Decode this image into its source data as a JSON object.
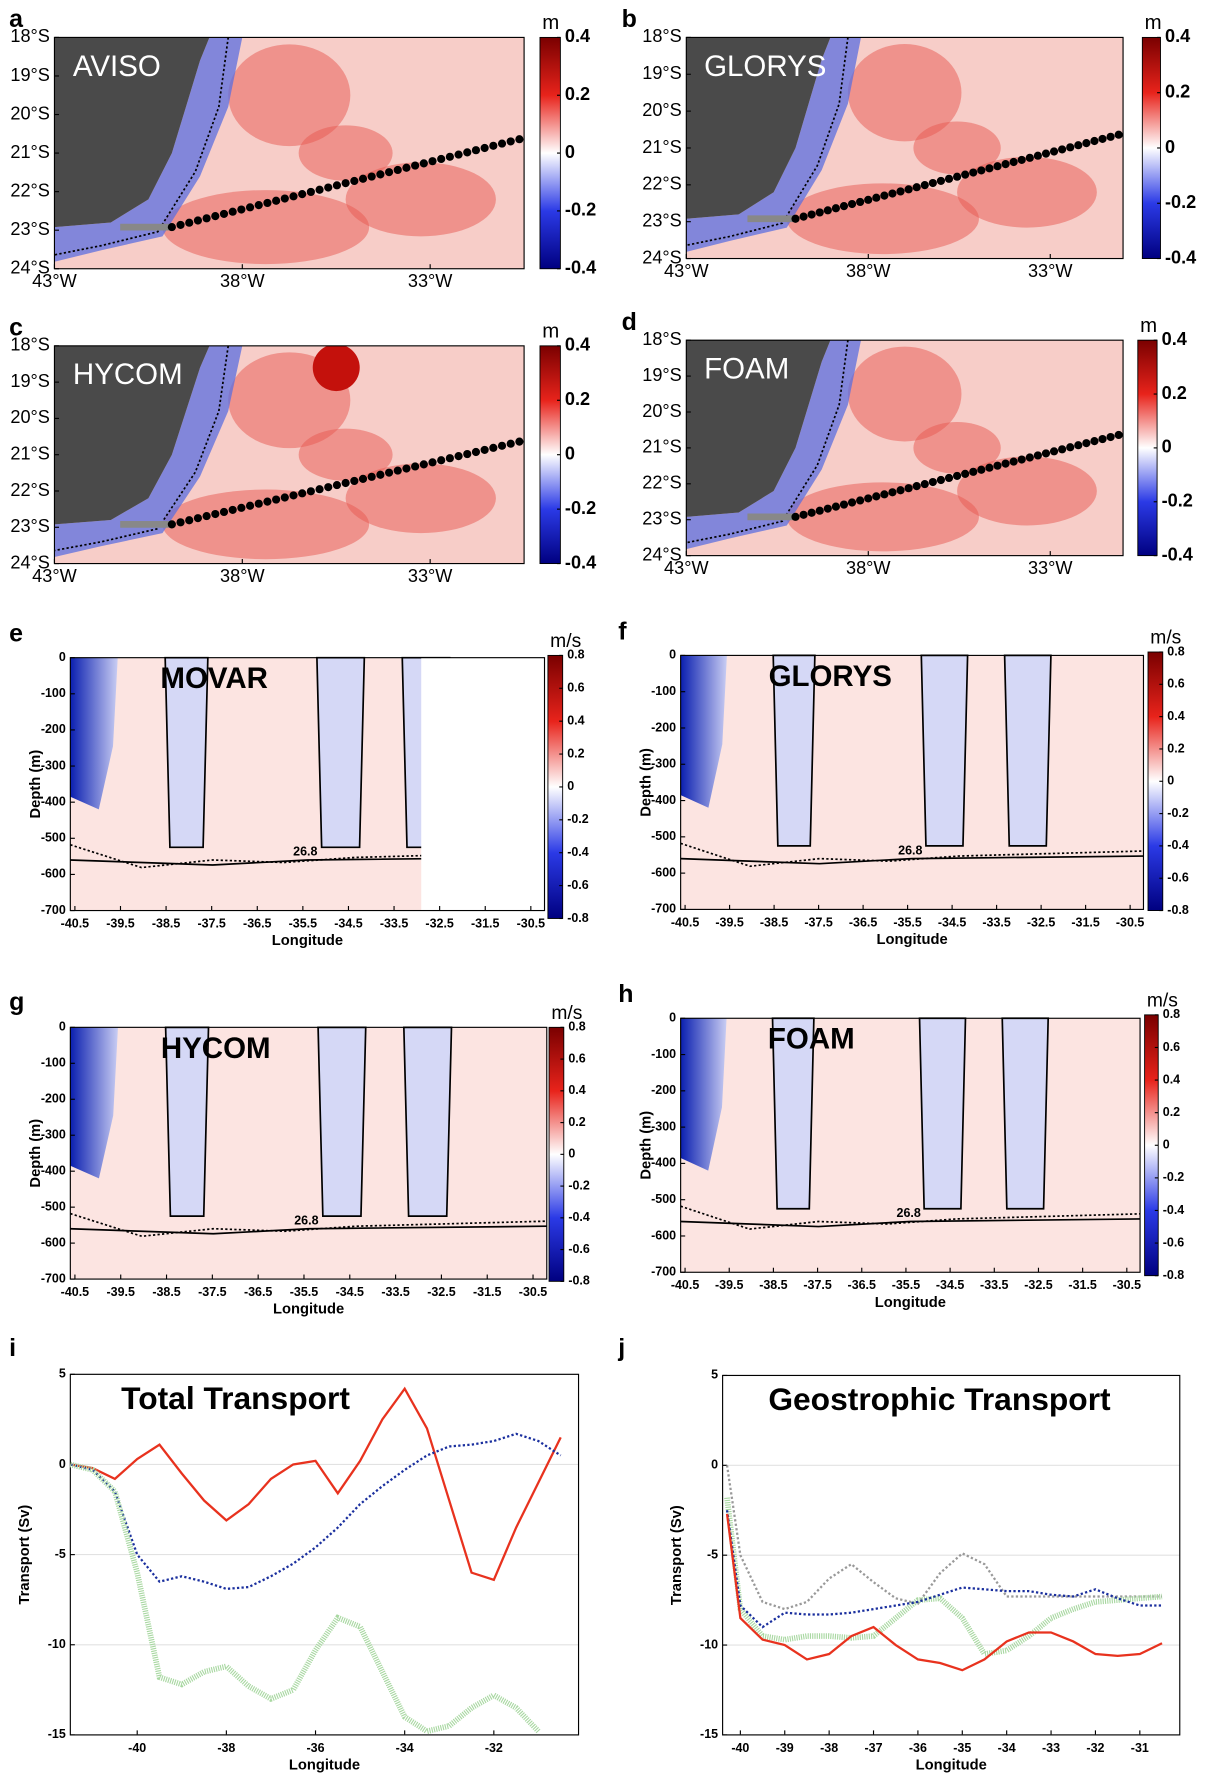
{
  "chart_data": [
    {
      "type": "map",
      "label": "a",
      "title": "AVISO",
      "xlim": [
        -43,
        -30.5
      ],
      "ylim": [
        -24,
        -18
      ],
      "xticks": [
        {
          "value": -43,
          "label": "43°W"
        },
        {
          "value": -38,
          "label": "38°W"
        },
        {
          "value": -33,
          "label": "33°W"
        }
      ],
      "yticks": [
        {
          "value": -18,
          "label": "18°S"
        },
        {
          "value": -19,
          "label": "19°S"
        },
        {
          "value": -20,
          "label": "20°S"
        },
        {
          "value": -21,
          "label": "21°S"
        },
        {
          "value": -22,
          "label": "22°S"
        },
        {
          "value": -23,
          "label": "23°S"
        },
        {
          "value": -24,
          "label": "24°S"
        }
      ],
      "colorbar": {
        "label": "m",
        "lim": [
          -0.4,
          0.4
        ],
        "ticks": [
          0.4,
          0.2,
          0,
          -0.2,
          -0.4
        ]
      }
    },
    {
      "type": "map",
      "label": "b",
      "title": "GLORYS",
      "xlim": [
        -43,
        -31
      ],
      "ylim": [
        -24,
        -18
      ],
      "xticks": [
        {
          "value": -43,
          "label": "43°W"
        },
        {
          "value": -38,
          "label": "38°W"
        },
        {
          "value": -33,
          "label": "33°W"
        }
      ],
      "yticks": [
        {
          "value": -18,
          "label": "18°S"
        },
        {
          "value": -19,
          "label": "19°S"
        },
        {
          "value": -20,
          "label": "20°S"
        },
        {
          "value": -21,
          "label": "21°S"
        },
        {
          "value": -22,
          "label": "22°S"
        },
        {
          "value": -23,
          "label": "23°S"
        },
        {
          "value": -24,
          "label": "24°S"
        }
      ],
      "colorbar": {
        "label": "m",
        "lim": [
          -0.4,
          0.4
        ],
        "ticks": [
          0.4,
          0.2,
          0,
          -0.2,
          -0.4
        ]
      }
    },
    {
      "type": "map",
      "label": "c",
      "title": "HYCOM",
      "xlim": [
        -43,
        -30.5
      ],
      "ylim": [
        -24,
        -18
      ],
      "xticks": [
        {
          "value": -43,
          "label": "43°W"
        },
        {
          "value": -38,
          "label": "38°W"
        },
        {
          "value": -33,
          "label": "33°W"
        }
      ],
      "yticks": [
        {
          "value": -18,
          "label": "18°S"
        },
        {
          "value": -19,
          "label": "19°S"
        },
        {
          "value": -20,
          "label": "20°S"
        },
        {
          "value": -21,
          "label": "21°S"
        },
        {
          "value": -22,
          "label": "22°S"
        },
        {
          "value": -23,
          "label": "23°S"
        },
        {
          "value": -24,
          "label": "24°S"
        }
      ],
      "colorbar": {
        "label": "m",
        "lim": [
          -0.4,
          0.4
        ],
        "ticks": [
          0.4,
          0.2,
          0,
          -0.2,
          -0.4
        ]
      }
    },
    {
      "type": "map",
      "label": "d",
      "title": "FOAM",
      "xlim": [
        -43,
        -31
      ],
      "ylim": [
        -24,
        -18
      ],
      "xticks": [
        {
          "value": -43,
          "label": "43°W"
        },
        {
          "value": -38,
          "label": "38°W"
        },
        {
          "value": -33,
          "label": "33°W"
        }
      ],
      "yticks": [
        {
          "value": -18,
          "label": "18°S"
        },
        {
          "value": -19,
          "label": "19°S"
        },
        {
          "value": -20,
          "label": "20°S"
        },
        {
          "value": -21,
          "label": "21°S"
        },
        {
          "value": -22,
          "label": "22°S"
        },
        {
          "value": -23,
          "label": "23°S"
        },
        {
          "value": -24,
          "label": "24°S"
        }
      ],
      "colorbar": {
        "label": "m",
        "lim": [
          -0.4,
          0.4
        ],
        "ticks": [
          0.4,
          0.2,
          0,
          -0.2,
          -0.4
        ]
      }
    },
    {
      "type": "section",
      "label": "e",
      "title": "MOVAR",
      "xlabel": "Longitude",
      "ylabel": "Depth (m)",
      "annotation": "26.8",
      "xlim": [
        -40.6,
        -30.2
      ],
      "ylim": [
        -700,
        0
      ],
      "xticks": [
        -40.5,
        -39.5,
        -38.5,
        -37.5,
        -36.5,
        -35.5,
        -34.5,
        -33.5,
        -32.5,
        -31.5,
        -30.5
      ],
      "yticks": [
        0,
        -100,
        -200,
        -300,
        -400,
        -500,
        -600,
        -700
      ],
      "colorbar": {
        "label": "m/s",
        "lim": [
          -0.8,
          0.8
        ],
        "ticks": [
          0.8,
          0.6,
          0.4,
          0.2,
          0,
          -0.2,
          -0.4,
          -0.6,
          -0.8
        ]
      }
    },
    {
      "type": "section",
      "label": "f",
      "title": "GLORYS",
      "xlabel": "Longitude",
      "ylabel": "Depth (m)",
      "annotation": "26.8",
      "xlim": [
        -40.6,
        -30.2
      ],
      "ylim": [
        -700,
        0
      ],
      "xticks": [
        -40.5,
        -39.5,
        -38.5,
        -37.5,
        -36.5,
        -35.5,
        -34.5,
        -33.5,
        -32.5,
        -31.5,
        -30.5
      ],
      "yticks": [
        0,
        -100,
        -200,
        -300,
        -400,
        -500,
        -600,
        -700
      ],
      "colorbar": {
        "label": "m/s",
        "lim": [
          -0.8,
          0.8
        ],
        "ticks": [
          0.8,
          0.6,
          0.4,
          0.2,
          0,
          -0.2,
          -0.4,
          -0.6,
          -0.8
        ]
      }
    },
    {
      "type": "section",
      "label": "g",
      "title": "HYCOM",
      "xlabel": "Longitude",
      "ylabel": "Depth (m)",
      "annotation": "26.8",
      "xlim": [
        -40.6,
        -30.2
      ],
      "ylim": [
        -700,
        0
      ],
      "xticks": [
        -40.5,
        -39.5,
        -38.5,
        -37.5,
        -36.5,
        -35.5,
        -34.5,
        -33.5,
        -32.5,
        -31.5,
        -30.5
      ],
      "yticks": [
        0,
        -100,
        -200,
        -300,
        -400,
        -500,
        -600,
        -700
      ],
      "colorbar": {
        "label": "m/s",
        "lim": [
          -0.8,
          0.8
        ],
        "ticks": [
          0.8,
          0.6,
          0.4,
          0.2,
          0,
          -0.2,
          -0.4,
          -0.6,
          -0.8
        ]
      }
    },
    {
      "type": "section",
      "label": "h",
      "title": "FOAM",
      "xlabel": "Longitude",
      "ylabel": "Depth (m)",
      "annotation": "26.8",
      "xlim": [
        -40.6,
        -30.2
      ],
      "ylim": [
        -700,
        0
      ],
      "xticks": [
        -40.5,
        -39.5,
        -38.5,
        -37.5,
        -36.5,
        -35.5,
        -34.5,
        -33.5,
        -32.5,
        -31.5,
        -30.5
      ],
      "yticks": [
        0,
        -100,
        -200,
        -300,
        -400,
        -500,
        -600,
        -700
      ],
      "colorbar": {
        "label": "m/s",
        "lim": [
          -0.8,
          0.8
        ],
        "ticks": [
          0.8,
          0.6,
          0.4,
          0.2,
          0,
          -0.2,
          -0.4,
          -0.6,
          -0.8
        ]
      }
    },
    {
      "type": "line",
      "label": "i",
      "title": "Total Transport",
      "xlabel": "Longitude",
      "ylabel": "Transport (Sv)",
      "xlim": [
        -41.5,
        -30.1
      ],
      "ylim": [
        -15,
        5
      ],
      "grid": true,
      "xticks": [
        -40,
        -38,
        -36,
        -34,
        -32
      ],
      "yticks": [
        5,
        0,
        -5,
        -10,
        -15
      ],
      "x": [
        -41.5,
        -41,
        -40.5,
        -40,
        -39.5,
        -39,
        -38.5,
        -38,
        -37.5,
        -37,
        -36.5,
        -36,
        -35.5,
        -35,
        -34.5,
        -34,
        -33.5,
        -33,
        -32.5,
        -32,
        -31.5,
        -31,
        -30.5
      ],
      "series": [
        {
          "color": "#e8321e",
          "style": "solid",
          "values": [
            0,
            -0.2,
            -0.8,
            0.3,
            1.1,
            -0.5,
            -2,
            -3.1,
            -2.2,
            -0.8,
            0,
            0.2,
            -1.6,
            0.2,
            2.5,
            4.2,
            2,
            -2,
            -6,
            -6.4,
            -3.5,
            -1,
            1.5
          ]
        },
        {
          "color": "#1a2f9e",
          "style": "dotted",
          "values": [
            0,
            -0.3,
            -1.5,
            -5,
            -6.5,
            -6.2,
            -6.5,
            -6.9,
            -6.8,
            -6.2,
            -5.5,
            -4.6,
            -3.5,
            -2.2,
            -1.2,
            -0.3,
            0.5,
            1,
            1.1,
            1.3,
            1.7,
            1.3,
            0.5
          ]
        },
        {
          "color": "#a9d8a2",
          "style": "thick",
          "values": [
            0,
            -0.3,
            -1.5,
            -6,
            -11.8,
            -12.2,
            -11.5,
            -11.2,
            -12.3,
            -13,
            -12.5,
            -10.3,
            -8.5,
            -9,
            -11.5,
            -14,
            -14.8,
            -14.5,
            -13.5,
            -12.8,
            -13.5,
            -14.8,
            null
          ]
        }
      ]
    },
    {
      "type": "line",
      "label": "j",
      "title": "Geostrophic Transport",
      "xlabel": "Longitude",
      "ylabel": "Transport (Sv)",
      "xlim": [
        -40.4,
        -30.1
      ],
      "ylim": [
        -15,
        5
      ],
      "grid": true,
      "xticks": [
        -40,
        -39,
        -38,
        -37,
        -36,
        -35,
        -34,
        -33,
        -32,
        -31
      ],
      "yticks": [
        5,
        0,
        -5,
        -10,
        -15
      ],
      "x": [
        -40.3,
        -40,
        -39.5,
        -39,
        -38.5,
        -38,
        -37.5,
        -37,
        -36.5,
        -36,
        -35.5,
        -35,
        -34.5,
        -34,
        -33.5,
        -33,
        -32.5,
        -32,
        -31.5,
        -31,
        -30.5
      ],
      "series": [
        {
          "color": "#999999",
          "style": "dotted",
          "values": [
            0,
            -5,
            -7.6,
            -8,
            -7.6,
            -6.3,
            -5.5,
            -6.5,
            -7.4,
            -7.7,
            -6,
            -4.9,
            -5.5,
            -7.3,
            -7.3,
            -7.3,
            -7.3,
            -7.3,
            -7.3,
            -7.3,
            -7.3
          ]
        },
        {
          "color": "#a9d8a2",
          "style": "thick",
          "values": [
            -1.8,
            -8,
            -9.5,
            -9.7,
            -9.5,
            -9.5,
            -9.6,
            -9.5,
            -8.5,
            -7.5,
            -7.4,
            -8.5,
            -10.5,
            -10.3,
            -9.5,
            -8.5,
            -8,
            -7.6,
            -7.5,
            -7.4,
            -7.3
          ]
        },
        {
          "color": "#1a2f9e",
          "style": "dotted",
          "values": [
            -2.5,
            -7.8,
            -9,
            -8.2,
            -8.3,
            -8.3,
            -8.2,
            -8,
            -7.8,
            -7.6,
            -7.2,
            -6.8,
            -6.9,
            -7,
            -7,
            -7.2,
            -7.3,
            -6.9,
            -7.4,
            -7.8,
            -7.8
          ]
        },
        {
          "color": "#e8321e",
          "style": "solid",
          "values": [
            -2.7,
            -8.5,
            -9.7,
            -10,
            -10.8,
            -10.5,
            -9.5,
            -9,
            -10,
            -10.8,
            -11,
            -11.4,
            -10.8,
            -9.8,
            -9.3,
            -9.3,
            -9.8,
            -10.5,
            -10.6,
            -10.5,
            -9.9
          ]
        }
      ]
    }
  ]
}
